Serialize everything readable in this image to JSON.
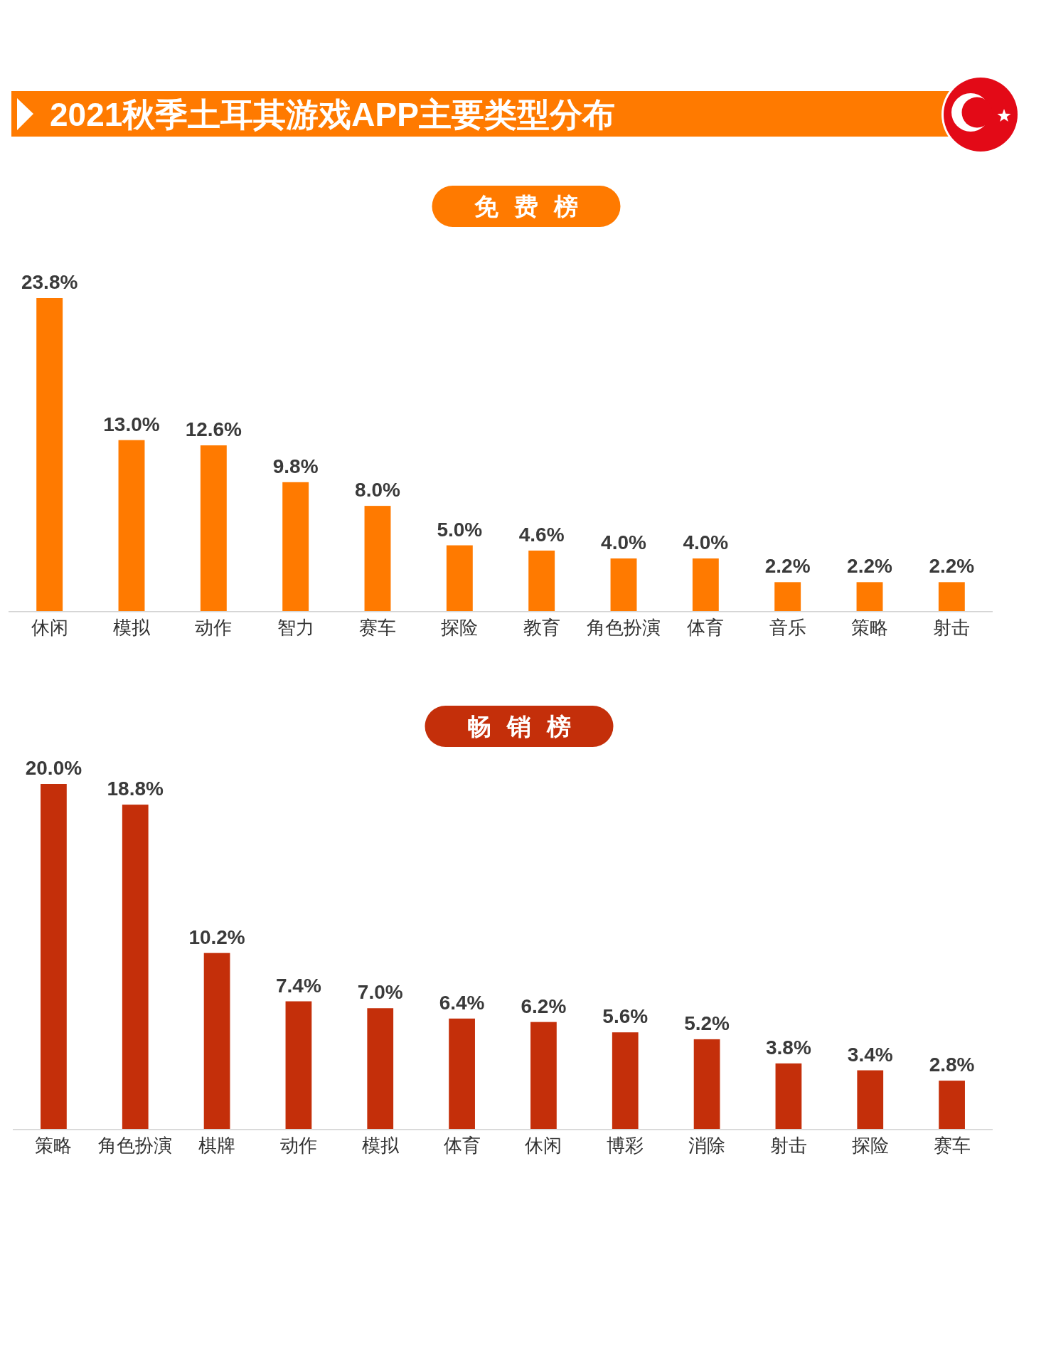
{
  "chart_data": [
    {
      "type": "other",
      "title": "2021秋季土耳其游戏APP主要类型分布"
    },
    {
      "type": "bar",
      "title": "免费榜",
      "categories": [
        "休闲",
        "模拟",
        "动作",
        "智力",
        "赛车",
        "探险",
        "教育",
        "角色扮演",
        "体育",
        "音乐",
        "策略",
        "射击"
      ],
      "values": [
        23.8,
        13.0,
        12.6,
        9.8,
        8.0,
        5.0,
        4.6,
        4.0,
        4.0,
        2.2,
        2.2,
        2.2
      ],
      "value_labels": [
        "23.8%",
        "13.0%",
        "12.6%",
        "9.8%",
        "8.0%",
        "5.0%",
        "4.6%",
        "4.0%",
        "4.0%",
        "2.2%",
        "2.2%",
        "2.2%"
      ],
      "color": "#ff7a00"
    },
    {
      "type": "bar",
      "title": "畅销榜",
      "categories": [
        "策略",
        "角色扮演",
        "棋牌",
        "动作",
        "模拟",
        "体育",
        "休闲",
        "博彩",
        "消除",
        "射击",
        "探险",
        "赛车"
      ],
      "values": [
        20.0,
        18.8,
        10.2,
        7.4,
        7.0,
        6.4,
        6.2,
        5.6,
        5.2,
        3.8,
        3.4,
        2.8
      ],
      "value_labels": [
        "20.0%",
        "18.8%",
        "10.2%",
        "7.4%",
        "7.0%",
        "6.4%",
        "6.2%",
        "5.6%",
        "5.2%",
        "3.8%",
        "3.4%",
        "2.8%"
      ],
      "color": "#c42f0a"
    }
  ]
}
